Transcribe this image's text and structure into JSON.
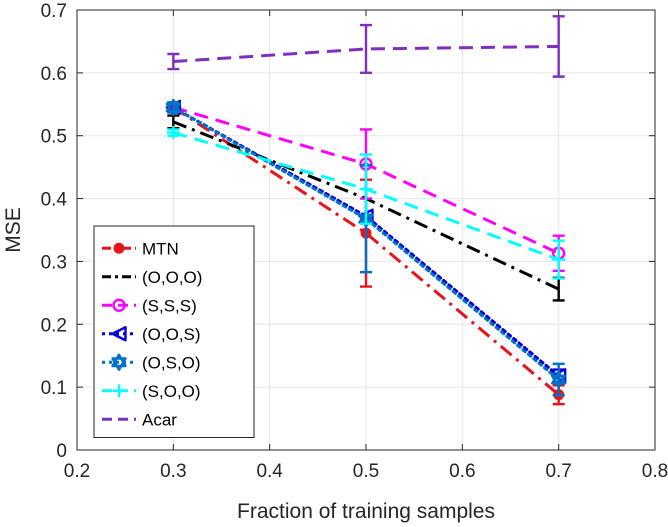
{
  "chart_data": {
    "type": "line",
    "title": "",
    "xlabel": "Fraction of training samples",
    "ylabel": "MSE",
    "xlim": [
      0.2,
      0.8
    ],
    "ylim": [
      0,
      0.7
    ],
    "xticks": [
      0.2,
      0.3,
      0.4,
      0.5,
      0.6,
      0.7,
      0.8
    ],
    "yticks": [
      0,
      0.1,
      0.2,
      0.3,
      0.4,
      0.5,
      0.6,
      0.7
    ],
    "xtick_labels": [
      "0.2",
      "0.3",
      "0.4",
      "0.5",
      "0.6",
      "0.7",
      "0.8"
    ],
    "ytick_labels": [
      "0",
      "0.1",
      "0.2",
      "0.3",
      "0.4",
      "0.5",
      "0.6",
      "0.7"
    ],
    "grid": true,
    "legend_position": "bottom-left",
    "x": [
      0.3,
      0.5,
      0.7
    ],
    "series": [
      {
        "name": "MTN",
        "color": "#e8141a",
        "dash": "dashdot",
        "marker": "filled-circle",
        "values": [
          0.545,
          0.345,
          0.088
        ],
        "err": [
          0.005,
          0.085,
          0.015
        ]
      },
      {
        "name": "(O,O,O)",
        "color": "#000000",
        "dash": "dashdot",
        "marker": "none",
        "values": [
          0.522,
          0.4,
          0.256
        ],
        "err": [
          0.01,
          0.0,
          0.018
        ]
      },
      {
        "name": "(S,S,S)",
        "color": "#ff00ff",
        "dash": "dashed",
        "marker": "open-circle",
        "values": [
          0.545,
          0.455,
          0.313
        ],
        "err": [
          0.005,
          0.055,
          0.028
        ]
      },
      {
        "name": "(O,O,S)",
        "color": "#0000dd",
        "dash": "dotted",
        "marker": "left-triangle",
        "values": [
          0.545,
          0.372,
          0.118
        ],
        "err": [
          0.008,
          0.0,
          0.01
        ]
      },
      {
        "name": "(O,S,O)",
        "color": "#0070c8",
        "dash": "dotted",
        "marker": "hexagram",
        "values": [
          0.545,
          0.368,
          0.112
        ],
        "err": [
          0.008,
          0.085,
          0.025
        ]
      },
      {
        "name": "(S,O,O)",
        "color": "#00ffff",
        "dash": "dashed",
        "marker": "plus",
        "values": [
          0.505,
          0.415,
          0.303
        ],
        "err": [
          0.005,
          0.055,
          0.03
        ]
      },
      {
        "name": "Acar",
        "color": "#7e2fbe",
        "dash": "dashed",
        "marker": "none",
        "values": [
          0.618,
          0.638,
          0.642
        ],
        "err": [
          0.012,
          0.038,
          0.048
        ]
      }
    ]
  }
}
